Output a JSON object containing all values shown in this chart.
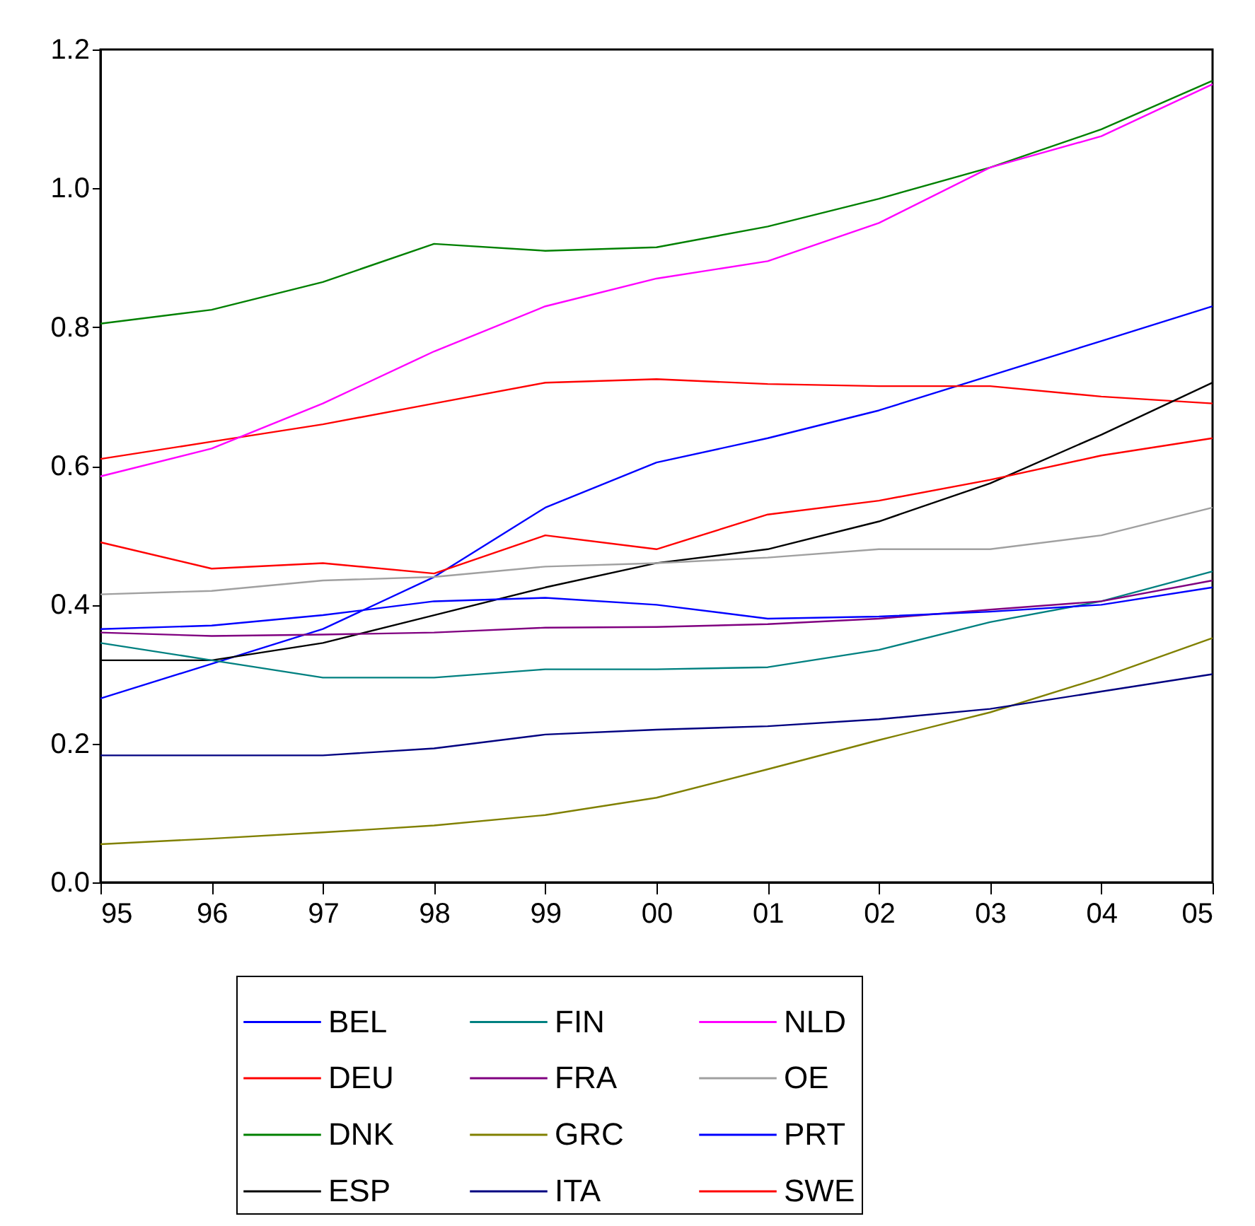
{
  "chart_data": {
    "type": "line",
    "categories": [
      "95",
      "96",
      "97",
      "98",
      "99",
      "00",
      "01",
      "02",
      "03",
      "04",
      "05"
    ],
    "ylim": [
      0,
      1.2
    ],
    "yticks": [
      {
        "value": 0,
        "label": "0.0"
      },
      {
        "value": 0.2,
        "label": "0.2"
      },
      {
        "value": 0.4,
        "label": "0.4"
      },
      {
        "value": 0.6,
        "label": "0.6"
      },
      {
        "value": 0.8,
        "label": "0.8"
      },
      {
        "value": 1.0,
        "label": "1.0"
      },
      {
        "value": 1.2,
        "label": "1.2"
      }
    ],
    "grid": false,
    "legend": "bottom",
    "marker": "none",
    "line_style": "solid",
    "series": [
      {
        "name": "BEL",
        "color": "#0000ff",
        "values": [
          0.265,
          0.315,
          0.365,
          0.44,
          0.54,
          0.605,
          0.64,
          0.68,
          0.73,
          0.78,
          0.83
        ]
      },
      {
        "name": "DEU",
        "color": "#ff0000",
        "values": [
          0.61,
          0.635,
          0.66,
          0.69,
          0.72,
          0.725,
          0.718,
          0.715,
          0.715,
          0.7,
          0.69
        ]
      },
      {
        "name": "DNK",
        "color": "#008000",
        "values": [
          0.805,
          0.825,
          0.865,
          0.92,
          0.91,
          0.915,
          0.945,
          0.985,
          1.03,
          1.085,
          1.155
        ]
      },
      {
        "name": "ESP",
        "color": "#000000",
        "values": [
          0.32,
          0.32,
          0.345,
          0.385,
          0.425,
          0.46,
          0.48,
          0.52,
          0.575,
          0.645,
          0.72
        ]
      },
      {
        "name": "FIN",
        "color": "#008080",
        "values": [
          0.345,
          0.32,
          0.295,
          0.295,
          0.307,
          0.307,
          0.31,
          0.335,
          0.375,
          0.405,
          0.448
        ]
      },
      {
        "name": "FRA",
        "color": "#800080",
        "values": [
          0.36,
          0.355,
          0.357,
          0.36,
          0.367,
          0.368,
          0.372,
          0.38,
          0.393,
          0.405,
          0.435
        ]
      },
      {
        "name": "GRC",
        "color": "#808000",
        "values": [
          0.055,
          0.063,
          0.072,
          0.082,
          0.097,
          0.122,
          0.163,
          0.205,
          0.245,
          0.295,
          0.352
        ]
      },
      {
        "name": "ITA",
        "color": "#000080",
        "values": [
          0.183,
          0.183,
          0.183,
          0.193,
          0.213,
          0.22,
          0.225,
          0.235,
          0.25,
          0.275,
          0.3
        ]
      },
      {
        "name": "NLD",
        "color": "#ff00ff",
        "values": [
          0.585,
          0.625,
          0.69,
          0.765,
          0.83,
          0.87,
          0.895,
          0.95,
          1.03,
          1.075,
          1.15
        ]
      },
      {
        "name": "OE",
        "color": "#a0a0a0",
        "values": [
          0.415,
          0.42,
          0.435,
          0.44,
          0.455,
          0.46,
          0.468,
          0.48,
          0.48,
          0.5,
          0.54
        ]
      },
      {
        "name": "PRT",
        "color": "#0000ff",
        "values": [
          0.365,
          0.37,
          0.385,
          0.405,
          0.41,
          0.4,
          0.38,
          0.383,
          0.39,
          0.4,
          0.425
        ]
      },
      {
        "name": "SWE",
        "color": "#ff0000",
        "values": [
          0.49,
          0.452,
          0.46,
          0.445,
          0.5,
          0.48,
          0.53,
          0.55,
          0.58,
          0.615,
          0.64
        ]
      }
    ]
  }
}
